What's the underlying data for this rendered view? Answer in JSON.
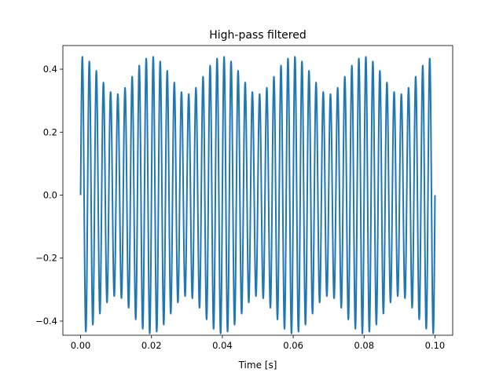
{
  "figure": {
    "background": "#ffffff"
  },
  "chart_data": {
    "type": "line",
    "title": "High-pass filtered",
    "xlabel": "Time [s]",
    "ylabel": "",
    "xlim": [
      -0.005,
      0.105
    ],
    "ylim": [
      -0.445,
      0.475
    ],
    "grid": false,
    "legend": "none",
    "x_ticks": [
      {
        "value": 0.0,
        "label": "0.00"
      },
      {
        "value": 0.02,
        "label": "0.02"
      },
      {
        "value": 0.04,
        "label": "0.04"
      },
      {
        "value": 0.06,
        "label": "0.06"
      },
      {
        "value": 0.08,
        "label": "0.08"
      },
      {
        "value": 0.1,
        "label": "0.10"
      }
    ],
    "y_ticks": [
      {
        "value": -0.4,
        "label": "−0.4"
      },
      {
        "value": -0.2,
        "label": "−0.2"
      },
      {
        "value": 0.0,
        "label": "0.0"
      },
      {
        "value": 0.2,
        "label": "0.2"
      },
      {
        "value": 0.4,
        "label": "0.4"
      }
    ],
    "series": [
      {
        "color": "#1f77b4",
        "signal": {
          "x_start": 0.0,
          "x_end": 0.1,
          "samples": 2001,
          "components": [
            {
              "amplitude": 0.38,
              "frequency_hz": 500,
              "phase": 0
            },
            {
              "amplitude": 0.06,
              "frequency_hz": 550,
              "phase": 0
            }
          ]
        }
      }
    ]
  }
}
